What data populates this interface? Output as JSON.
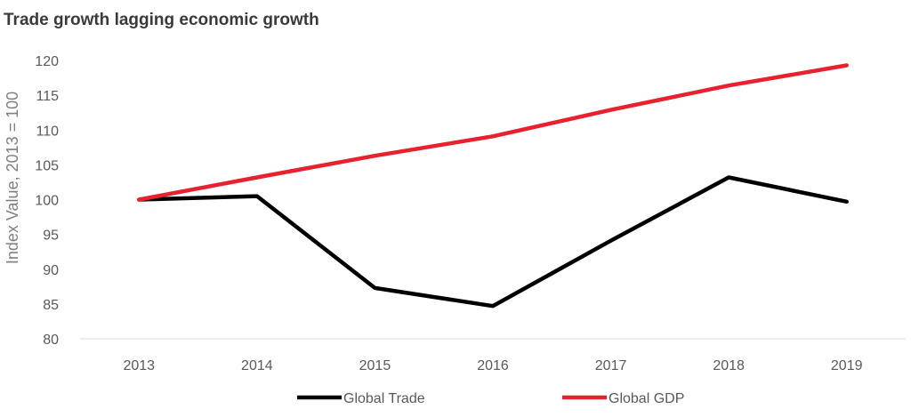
{
  "chart_data": {
    "type": "line",
    "title": "Trade growth lagging economic growth",
    "xlabel": "",
    "ylabel": "Index Value, 2013 = 100",
    "ylim": [
      80,
      120
    ],
    "yticks": [
      80,
      85,
      90,
      95,
      100,
      105,
      110,
      115,
      120
    ],
    "x": [
      "2013",
      "2014",
      "2015",
      "2016",
      "2017",
      "2018",
      "2019"
    ],
    "grid": false,
    "legend": "bottom",
    "series": [
      {
        "name": "Global Trade",
        "color": "#000000",
        "values": [
          100,
          100.5,
          87.3,
          84.7,
          94.1,
          103.2,
          99.7
        ]
      },
      {
        "name": "Global GDP",
        "color": "#e8212e",
        "values": [
          100,
          103.2,
          106.3,
          109.1,
          112.9,
          116.4,
          119.3
        ]
      }
    ]
  }
}
